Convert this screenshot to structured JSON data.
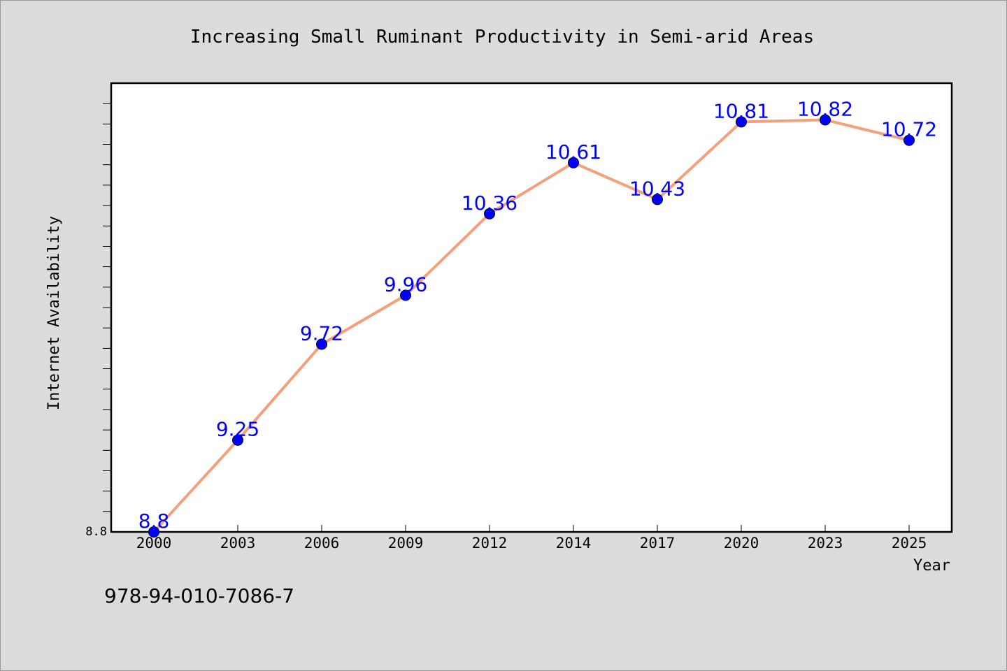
{
  "chart_data": {
    "type": "line",
    "title": "Increasing Small Ruminant Productivity in Semi-arid Areas",
    "xlabel": "Year",
    "ylabel": "Internet Availability",
    "categories": [
      "2000",
      "2003",
      "2006",
      "2009",
      "2012",
      "2014",
      "2017",
      "2020",
      "2023",
      "2025"
    ],
    "series": [
      {
        "values": [
          8.8,
          9.25,
          9.72,
          9.96,
          10.36,
          10.61,
          10.43,
          10.81,
          10.82,
          10.72
        ],
        "labels": [
          "8.8",
          "9.25",
          "9.72",
          "9.96",
          "10.36",
          "10.61",
          "10.43",
          "10.81",
          "10.82",
          "10.72"
        ]
      }
    ],
    "ytick_labels": [
      "8.8"
    ],
    "ylim": [
      8.8,
      11.0
    ],
    "grid": false,
    "colors": {
      "line": "#f4a07c",
      "marker": "#0000ff",
      "data_label": "#0000ff",
      "background": "#dcdcdc",
      "plot_area": "#ffffff"
    }
  },
  "footer": {
    "isbn": "978-94-010-7086-7"
  }
}
